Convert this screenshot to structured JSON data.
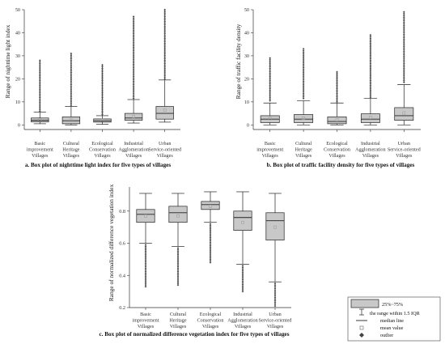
{
  "chart_data": [
    {
      "type": "box",
      "title": "a. Box plot of nighttime light index for five types of villages",
      "ylabel": "Range of nighttime light index",
      "ylim": [
        -2,
        50
      ],
      "yticks": [
        0,
        10,
        20,
        30,
        40,
        50
      ],
      "categories": [
        [
          "Basic",
          "improvement",
          "Villages"
        ],
        [
          "Cultural",
          "Heritage",
          "Villages"
        ],
        [
          "Ecological",
          "Conservation",
          "Villages"
        ],
        [
          "Industrial",
          "Agglomeration",
          "Villages"
        ],
        [
          "Urban",
          "Service-oriented",
          "Villages"
        ]
      ],
      "boxes": [
        {
          "whisker_low": 0.5,
          "q1": 1.3,
          "median": 2.0,
          "q3": 3.0,
          "whisker_high": 5.5,
          "mean": 2.2,
          "outliers_from": 6,
          "outliers_to": 28
        },
        {
          "whisker_low": 0.0,
          "q1": 0.5,
          "median": 1.8,
          "q3": 3.5,
          "whisker_high": 8.0,
          "mean": 2.1,
          "outliers_from": 8.5,
          "outliers_to": 31
        },
        {
          "whisker_low": 0.3,
          "q1": 1.2,
          "median": 1.8,
          "q3": 2.6,
          "whisker_high": 4.0,
          "mean": 2.0,
          "outliers_from": 4.5,
          "outliers_to": 26
        },
        {
          "whisker_low": 0.8,
          "q1": 2.0,
          "median": 3.0,
          "q3": 5.0,
          "whisker_high": 11.0,
          "mean": 3.5,
          "outliers_from": 11.5,
          "outliers_to": 47
        },
        {
          "whisker_low": 1.2,
          "q1": 2.5,
          "median": 5.0,
          "q3": 8.0,
          "whisker_high": 19.5,
          "mean": 6.5,
          "outliers_from": 20,
          "outliers_to": 50
        }
      ]
    },
    {
      "type": "box",
      "title": "b. Box plot of traffic facility density for five types of villages",
      "ylabel": "Range of traffic facility density",
      "ylim": [
        -2,
        50
      ],
      "yticks": [
        0,
        10,
        20,
        30,
        40,
        50
      ],
      "categories": [
        [
          "Basic",
          "improvement",
          "Villages"
        ],
        [
          "Cultural",
          "Heritage",
          "Villages"
        ],
        [
          "Ecological",
          "Conservation",
          "Villages"
        ],
        [
          "Industrial",
          "Agglomeration",
          "Villages"
        ],
        [
          "Urban",
          "Service-oriented",
          "Villages"
        ]
      ],
      "boxes": [
        {
          "whisker_low": 0.0,
          "q1": 1.0,
          "median": 2.5,
          "q3": 4.0,
          "whisker_high": 9.5,
          "mean": 2.8,
          "outliers_from": 10.5,
          "outliers_to": 29
        },
        {
          "whisker_low": 0.0,
          "q1": 1.0,
          "median": 2.5,
          "q3": 4.5,
          "whisker_high": 10.5,
          "mean": 3.0,
          "outliers_from": 11.5,
          "outliers_to": 33
        },
        {
          "whisker_low": 0.0,
          "q1": 0.5,
          "median": 1.5,
          "q3": 3.5,
          "whisker_high": 9.5,
          "mean": 2.2,
          "outliers_from": 10,
          "outliers_to": 23
        },
        {
          "whisker_low": 0.0,
          "q1": 1.0,
          "median": 2.5,
          "q3": 4.8,
          "whisker_high": 11.5,
          "mean": 3.2,
          "outliers_from": 12,
          "outliers_to": 39
        },
        {
          "whisker_low": 0.0,
          "q1": 2.0,
          "median": 4.0,
          "q3": 7.5,
          "whisker_high": 17.5,
          "mean": 5.2,
          "outliers_from": 18.5,
          "outliers_to": 49
        }
      ]
    },
    {
      "type": "box",
      "title": "c. Box plot of normalized difference vegetation index for five types of villages",
      "ylabel": "Range of normalized difference vegetation index",
      "ylim": [
        0.2,
        0.95
      ],
      "yticks": [
        0.2,
        0.4,
        0.6,
        0.8
      ],
      "categories": [
        [
          "Basic",
          "improvement",
          "Villages"
        ],
        [
          "Cultural",
          "Heritage",
          "Villages"
        ],
        [
          "Ecological",
          "Conservation",
          "Villages"
        ],
        [
          "Industrial",
          "Agglomeration",
          "Villages"
        ],
        [
          "Urban",
          "Service-oriented",
          "Villages"
        ]
      ],
      "boxes": [
        {
          "whisker_low": 0.6,
          "q1": 0.73,
          "median": 0.78,
          "q3": 0.81,
          "whisker_high": 0.91,
          "mean": 0.77,
          "outliers_from": 0.33,
          "outliers_to": 0.59
        },
        {
          "whisker_low": 0.58,
          "q1": 0.73,
          "median": 0.79,
          "q3": 0.83,
          "whisker_high": 0.91,
          "mean": 0.77,
          "outliers_from": 0.34,
          "outliers_to": 0.57
        },
        {
          "whisker_low": 0.73,
          "q1": 0.81,
          "median": 0.84,
          "q3": 0.86,
          "whisker_high": 0.92,
          "mean": 0.83,
          "outliers_from": 0.48,
          "outliers_to": 0.72
        },
        {
          "whisker_low": 0.47,
          "q1": 0.68,
          "median": 0.76,
          "q3": 0.8,
          "whisker_high": 0.92,
          "mean": 0.73,
          "outliers_from": 0.3,
          "outliers_to": 0.46
        },
        {
          "whisker_low": 0.36,
          "q1": 0.62,
          "median": 0.74,
          "q3": 0.79,
          "whisker_high": 0.91,
          "mean": 0.7,
          "outliers_from": 0.21,
          "outliers_to": 0.35
        }
      ]
    }
  ],
  "legend": {
    "box": "25%~75%",
    "whisker": "the range within 1.5 IQR",
    "median": "median line",
    "mean": "mean value",
    "outlier": "outlier"
  },
  "colors": {
    "box_fill": "#c8c8c8",
    "stroke": "#222222",
    "mean_marker": "#9a9a9a",
    "outlier": "#444444"
  }
}
